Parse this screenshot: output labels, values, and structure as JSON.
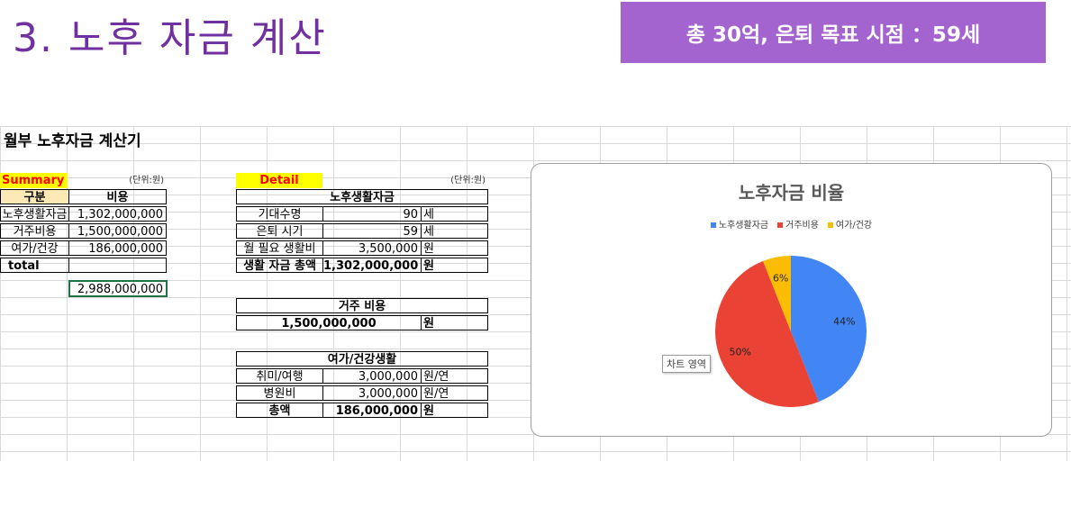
{
  "header": {
    "title": "3. 노후 자금 계산",
    "badge": "총 30억, 은퇴 목표 시점 ：59세"
  },
  "sheet_title": "월부 노후자금 계산기",
  "summary": {
    "label": "Summary",
    "unit": "(단위:원)",
    "col_header": [
      "구분",
      "비용"
    ],
    "rows": [
      {
        "label": "노후생활자금",
        "value": "1,302,000,000"
      },
      {
        "label": "거주비용",
        "value": "1,500,000,000"
      },
      {
        "label": "여가/건강",
        "value": "186,000,000"
      }
    ],
    "total_label": "total",
    "total_value": "2,988,000,000"
  },
  "detail": {
    "label": "Detail",
    "unit": "(단위:원)",
    "living": {
      "header": "노후생활자금",
      "rows": [
        {
          "label": "기대수명",
          "value": "90",
          "unit": "세"
        },
        {
          "label": "은퇴 시기",
          "value": "59",
          "unit": "세"
        },
        {
          "label": "월 필요 생활비",
          "value": "3,500,000",
          "unit": "원"
        },
        {
          "label": "생활 자금 총액",
          "value": "1,302,000,000",
          "unit": "원"
        }
      ]
    },
    "housing": {
      "header": "거주 비용",
      "value": "1,500,000,000",
      "unit": "원"
    },
    "leisure": {
      "header": "여가/건강생활",
      "rows": [
        {
          "label": "취미/여행",
          "value": "3,000,000",
          "unit": "원/연"
        },
        {
          "label": "병원비",
          "value": "3,000,000",
          "unit": "원/연"
        },
        {
          "label": "총액",
          "value": "186,000,000",
          "unit": "원"
        }
      ]
    }
  },
  "tooltip": "차트 영역",
  "chart_data": {
    "type": "pie",
    "title": "노후자금 비율",
    "legend_position": "top",
    "categories": [
      "노후생활자금",
      "거주비용",
      "여가/건강"
    ],
    "values": [
      44,
      50,
      6
    ],
    "labels": [
      "44%",
      "50%",
      "6%"
    ],
    "colors": [
      "#4285f4",
      "#ea4335",
      "#fbbc04"
    ]
  }
}
